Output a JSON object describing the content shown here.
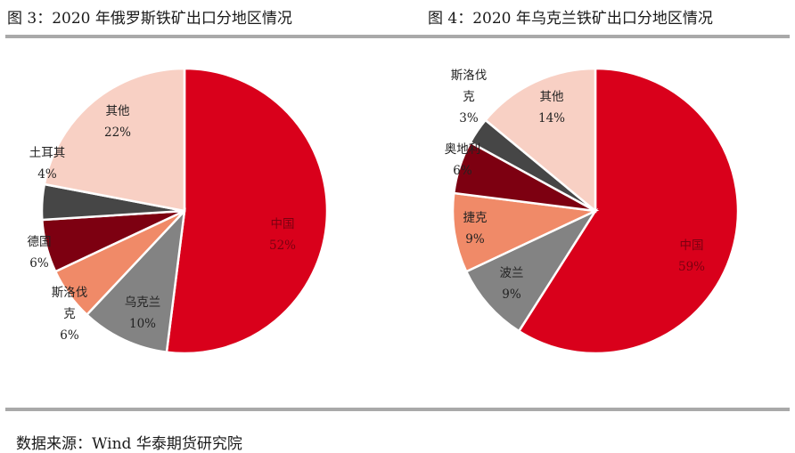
{
  "page": {
    "title_left": "图 3：2020 年俄罗斯铁矿出口分地区情况",
    "title_right": "图 4：2020 年乌克兰铁矿出口分地区情况",
    "source": "数据来源：Wind 华泰期货研究院"
  },
  "chart_data": [
    {
      "type": "pie",
      "title": "图 3：2020 年俄罗斯铁矿出口分地区情况",
      "start_angle": "12 o'clock",
      "direction": "clockwise",
      "slices": [
        {
          "name": "中国",
          "value": 52,
          "label": "52%",
          "color": "#d9001b"
        },
        {
          "name": "乌克兰",
          "value": 10,
          "label": "10%",
          "color": "#838383"
        },
        {
          "name": "斯洛伐克",
          "value": 6,
          "label": "6%",
          "color": "#f08a68"
        },
        {
          "name": "德国",
          "value": 6,
          "label": "6%",
          "color": "#7d0011"
        },
        {
          "name": "土耳其",
          "value": 4,
          "label": "4%",
          "color": "#464646"
        },
        {
          "name": "其他",
          "value": 22,
          "label": "22%",
          "color": "#f8d0c4"
        }
      ]
    },
    {
      "type": "pie",
      "title": "图 4：2020 年乌克兰铁矿出口分地区情况",
      "start_angle": "12 o'clock",
      "direction": "clockwise",
      "slices": [
        {
          "name": "中国",
          "value": 59,
          "label": "59%",
          "color": "#d9001b"
        },
        {
          "name": "波兰",
          "value": 9,
          "label": "9%",
          "color": "#838383"
        },
        {
          "name": "捷克",
          "value": 9,
          "label": "9%",
          "color": "#f08a68"
        },
        {
          "name": "奥地利",
          "value": 6,
          "label": "6%",
          "color": "#7d0011"
        },
        {
          "name": "斯洛伐克",
          "value": 3,
          "label": "3%",
          "color": "#464646"
        },
        {
          "name": "其他",
          "value": 14,
          "label": "14%",
          "color": "#f8d0c4"
        }
      ]
    }
  ]
}
